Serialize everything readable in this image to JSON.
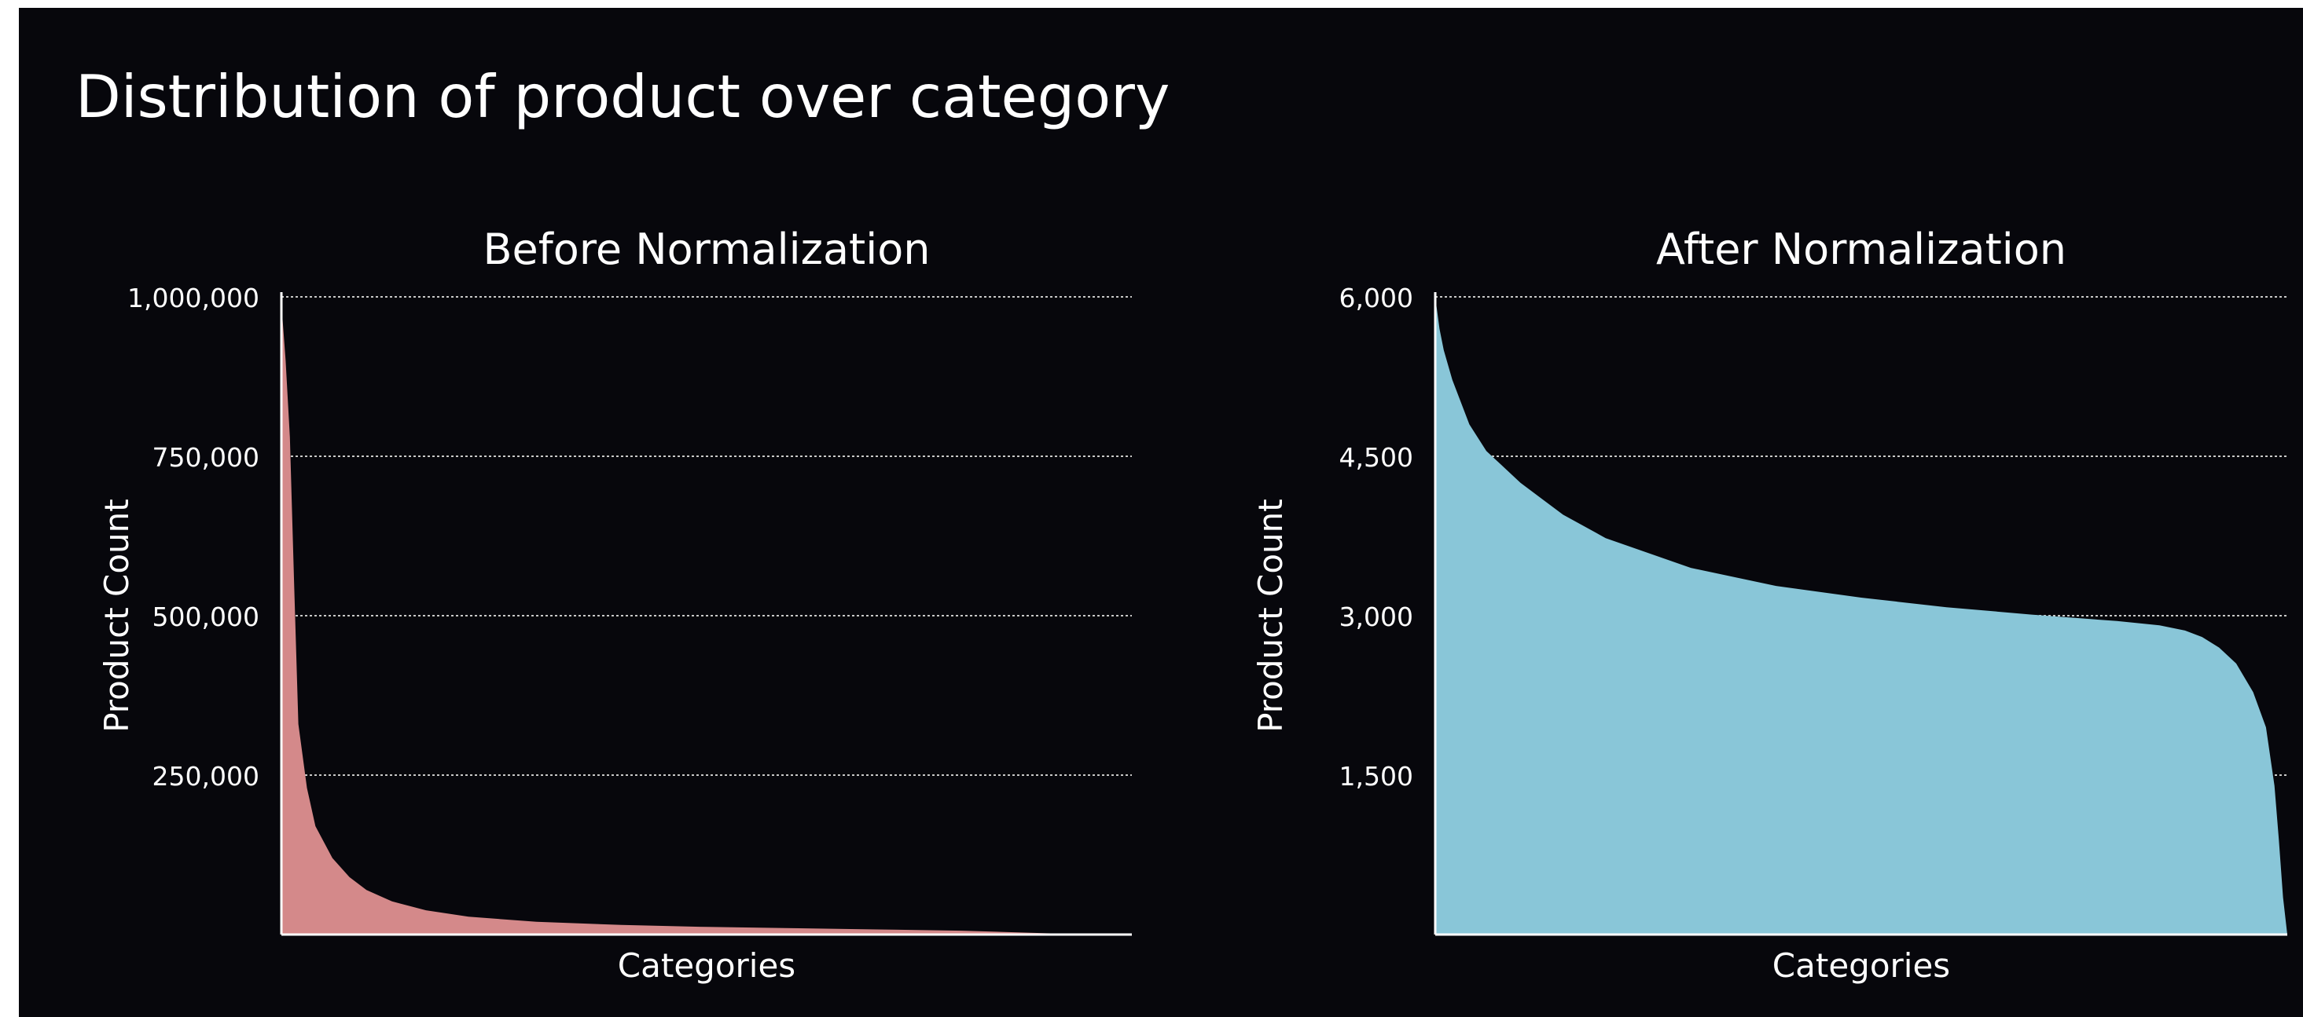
{
  "title": "Distribution of product over category",
  "chart_data": [
    {
      "type": "area",
      "title": "Before Normalization",
      "xlabel": "Categories",
      "ylabel": "Product Count",
      "ylim": [
        0,
        1000000
      ],
      "yticks": [
        250000,
        500000,
        750000,
        1000000
      ],
      "ytick_labels": [
        "250,000",
        "500,000",
        "750,000",
        "1,000,000"
      ],
      "grid": true,
      "color": "#d4898a",
      "x": [
        0,
        0.005,
        0.01,
        0.015,
        0.02,
        0.03,
        0.04,
        0.06,
        0.08,
        0.1,
        0.13,
        0.17,
        0.22,
        0.3,
        0.4,
        0.5,
        0.6,
        0.7,
        0.8,
        0.9,
        0.95,
        1.0
      ],
      "values": [
        990000,
        900000,
        780000,
        550000,
        330000,
        230000,
        170000,
        120000,
        90000,
        70000,
        52000,
        38000,
        28000,
        20000,
        15000,
        12000,
        10000,
        8000,
        6000,
        2000,
        500,
        0
      ]
    },
    {
      "type": "area",
      "title": "After Normalization",
      "xlabel": "Categories",
      "ylabel": "Product Count",
      "ylim": [
        0,
        6000
      ],
      "yticks": [
        1500,
        3000,
        4500,
        6000
      ],
      "ytick_labels": [
        "1,500",
        "3,000",
        "4,500",
        "6,000"
      ],
      "grid": true,
      "color": "#89c6d8",
      "x": [
        0,
        0.005,
        0.01,
        0.02,
        0.04,
        0.06,
        0.1,
        0.15,
        0.2,
        0.3,
        0.4,
        0.5,
        0.6,
        0.7,
        0.8,
        0.85,
        0.88,
        0.9,
        0.92,
        0.94,
        0.96,
        0.975,
        0.985,
        0.99,
        0.995,
        1.0
      ],
      "values": [
        6000,
        5700,
        5500,
        5220,
        4800,
        4550,
        4250,
        3950,
        3730,
        3450,
        3280,
        3170,
        3080,
        3010,
        2950,
        2910,
        2860,
        2800,
        2700,
        2550,
        2280,
        1950,
        1400,
        900,
        350,
        0
      ]
    }
  ]
}
